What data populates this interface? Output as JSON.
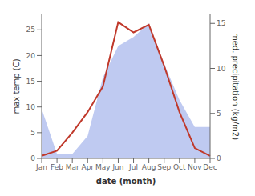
{
  "chart_data": {
    "type": "line",
    "categories": [
      "Jan",
      "Feb",
      "Mar",
      "Apr",
      "May",
      "Jun",
      "Jul",
      "Aug",
      "Sep",
      "Oct",
      "Nov",
      "Dec"
    ],
    "series": [
      {
        "type": "area",
        "axis": "y2",
        "color": "#b8c4ef",
        "values": [
          5.5,
          0.5,
          0.5,
          2.5,
          9.0,
          12.5,
          13.5,
          15.0,
          10.5,
          6.5,
          3.5,
          3.5
        ]
      },
      {
        "type": "line",
        "axis": "y",
        "color": "#c0392b",
        "values": [
          0.5,
          1.5,
          5.0,
          9.0,
          14.0,
          26.5,
          24.5,
          26.0,
          18.0,
          9.0,
          2.0,
          0.5
        ]
      }
    ],
    "xlabel": "date (month)",
    "ylabel": "max temp (C)",
    "y2label": "med. precipitation (kg/m2)",
    "ylim": [
      0,
      28
    ],
    "yticks": [
      0,
      5,
      10,
      15,
      20,
      25
    ],
    "y2lim": [
      0,
      16
    ],
    "y2ticks": [
      0,
      5,
      10,
      15
    ],
    "grid": false
  }
}
